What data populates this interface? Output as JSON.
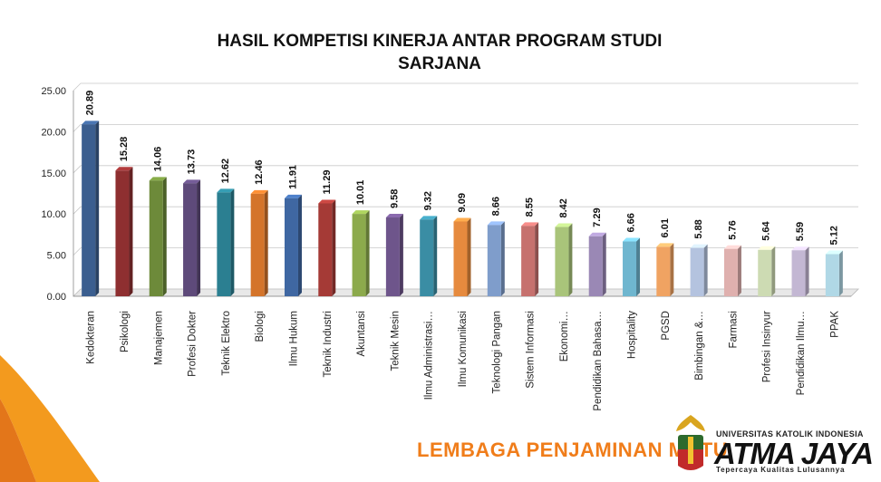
{
  "chart_data": {
    "type": "bar",
    "title_lines": [
      "HASIL KOMPETISI KINERJA ANTAR PROGRAM STUDI",
      "SARJANA"
    ],
    "categories": [
      "Kedokteran",
      "Psikologi",
      "Manajemen",
      "Profesi Dokter",
      "Teknik Elektro",
      "Biologi",
      "Ilmu Hukum",
      "Teknik Industri",
      "Akuntansi",
      "Teknik Mesin",
      "Ilmu Administrasi…",
      "Ilmu Komunikasi",
      "Teknologi Pangan",
      "Sistem Informasi",
      "Ekonomi…",
      "Pendidikan Bahasa…",
      "Hospitality",
      "PGSD",
      "Bimbingan &…",
      "Farmasi",
      "Profesi Insinyur",
      "Pendidikan Ilmu…",
      "PPAK"
    ],
    "values": [
      20.89,
      15.28,
      14.06,
      13.73,
      12.62,
      12.46,
      11.91,
      11.29,
      10.01,
      9.58,
      9.32,
      9.09,
      8.66,
      8.55,
      8.42,
      7.29,
      6.66,
      6.01,
      5.88,
      5.76,
      5.64,
      5.59,
      5.12
    ],
    "value_labels": [
      "20.89",
      "15.28",
      "14.06",
      "13.73",
      "12.62",
      "12.46",
      "11.91",
      "11.29",
      "10.01",
      "9.58",
      "9.32",
      "9.09",
      "8.66",
      "8.55",
      "8.42",
      "7.29",
      "6.66",
      "6.01",
      "5.88",
      "5.76",
      "5.64",
      "5.59",
      "5.12"
    ],
    "colors": [
      "#3b5e8f",
      "#8e2f30",
      "#6d8a3a",
      "#5e4a7a",
      "#2b7f91",
      "#d4742a",
      "#3f67a2",
      "#a53a36",
      "#8caa4c",
      "#6e558b",
      "#3a8da4",
      "#e68a3e",
      "#7f9dcb",
      "#c6716e",
      "#a9c47a",
      "#9a88b5",
      "#6fb6cf",
      "#f0a362",
      "#b4c3df",
      "#dfb0ae",
      "#cddbb3",
      "#c3b7d3",
      "#b0d8e6"
    ],
    "ylim": [
      0,
      25
    ],
    "yticks": [
      "0.00",
      "5.00",
      "10.00",
      "15.00",
      "20.00",
      "25.00"
    ],
    "grid": true
  },
  "footer": {
    "unit_label": "LEMBAGA PENJAMINAN MUTU",
    "university": "UNIVERSITAS KATOLIK INDONESIA",
    "brand": "ATMA JAYA",
    "tagline": "Tepercaya Kualitas Lulusannya"
  }
}
